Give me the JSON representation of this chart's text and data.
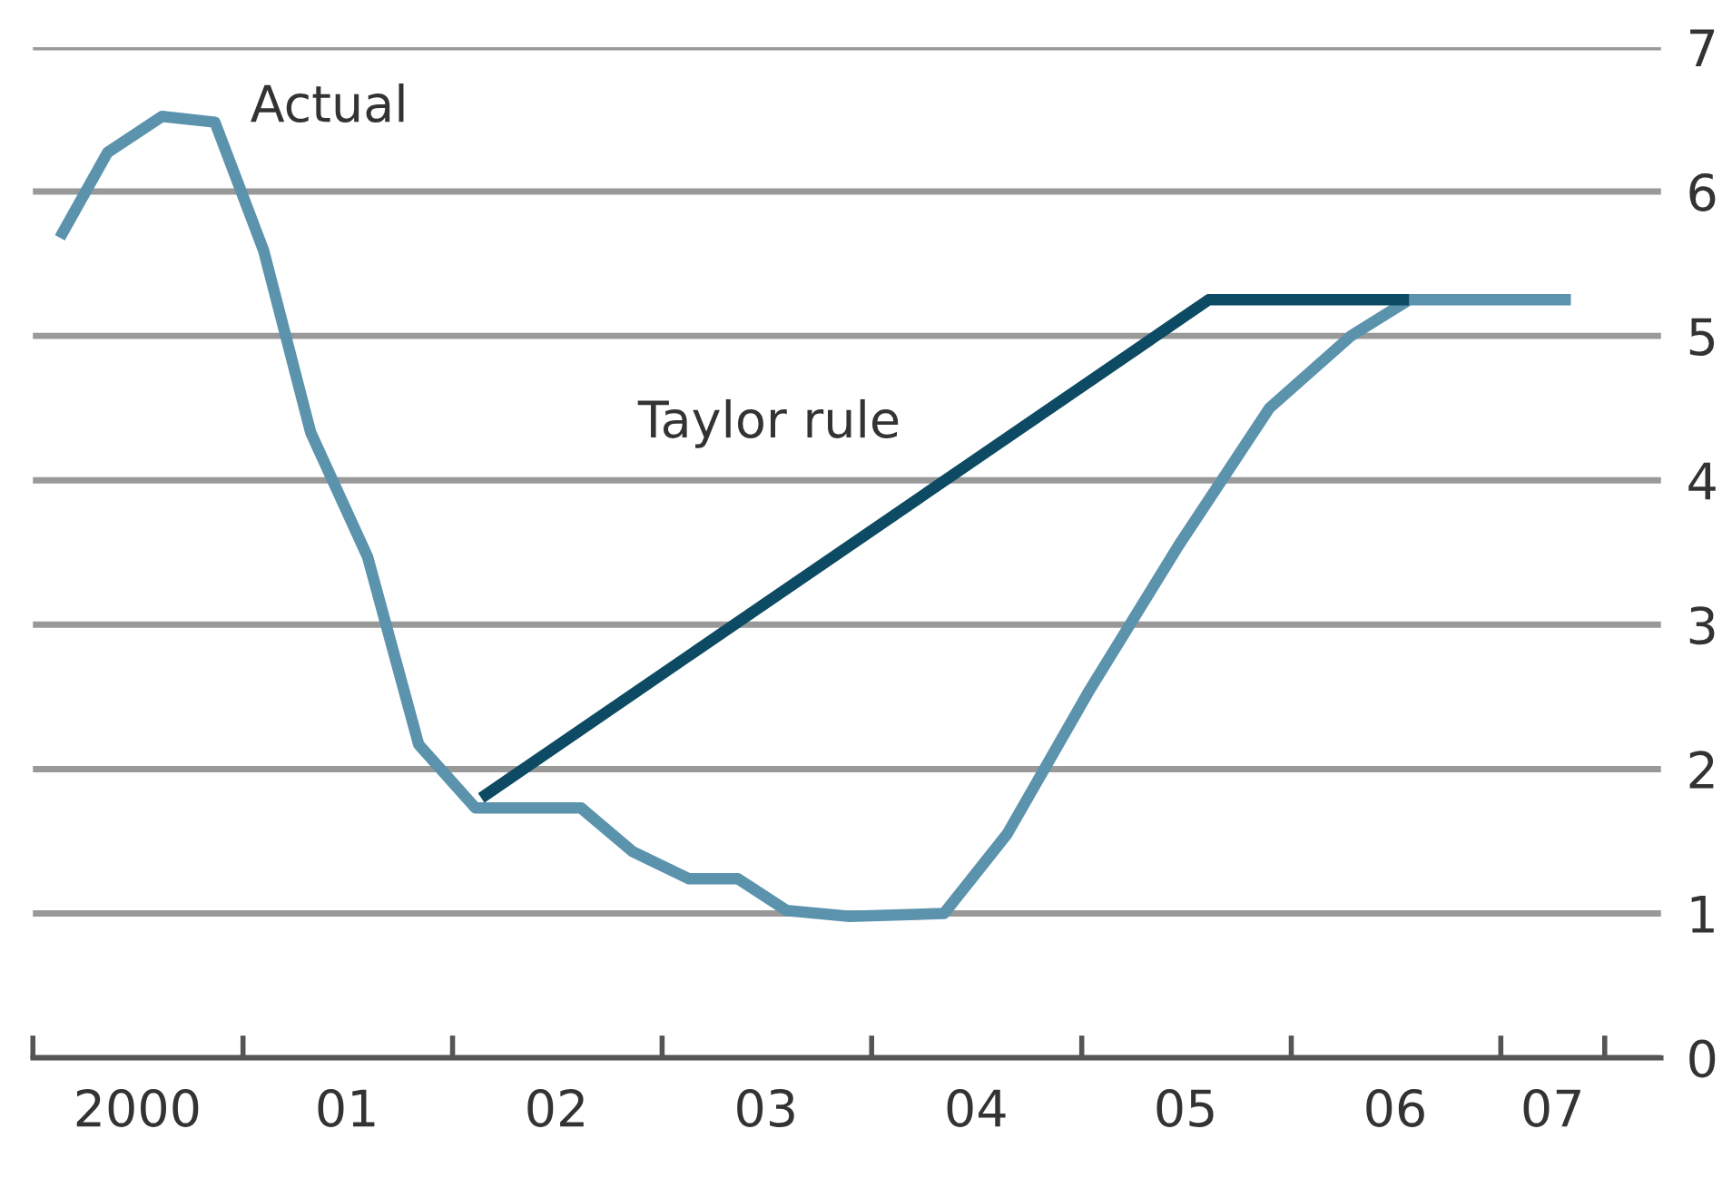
{
  "chart_data": {
    "type": "line",
    "xlim": [
      "2000-01-01",
      "2007-10-07"
    ],
    "xticks": [
      {
        "value": "2000-01-01",
        "label": null
      },
      {
        "value": "2000-07-01",
        "label": "2000"
      },
      {
        "value": "2001-01-01",
        "label": null
      },
      {
        "value": "2001-07-01",
        "label": "01"
      },
      {
        "value": "2002-01-01",
        "label": null
      },
      {
        "value": "2002-07-01",
        "label": "02"
      },
      {
        "value": "2003-01-01",
        "label": null
      },
      {
        "value": "2003-07-01",
        "label": "03"
      },
      {
        "value": "2004-01-01",
        "label": null
      },
      {
        "value": "2004-07-01",
        "label": "04"
      },
      {
        "value": "2005-01-01",
        "label": null
      },
      {
        "value": "2005-07-01",
        "label": "05"
      },
      {
        "value": "2006-01-01",
        "label": null
      },
      {
        "value": "2006-07-01",
        "label": "06"
      },
      {
        "value": "2007-01-01",
        "label": null
      },
      {
        "value": "2007-04-01",
        "label": "07"
      },
      {
        "value": "2007-07-01",
        "label": null
      }
    ],
    "ylim": [
      0,
      7
    ],
    "yticks": [
      0,
      1,
      2,
      3,
      4,
      5,
      6,
      7
    ],
    "grid": "y",
    "legend": false,
    "marker": "none",
    "line_style": "solid",
    "series": [
      {
        "name": "Actual",
        "color": "#5b93ad",
        "x": [
          "2000-02-17",
          "2000-05-10",
          "2000-08-13",
          "2000-11-13",
          "2001-02-06",
          "2001-04-29",
          "2001-08-06",
          "2001-11-03",
          "2002-02-10",
          "2002-08-13",
          "2002-11-10",
          "2003-02-17",
          "2003-05-13",
          "2003-08-06",
          "2003-11-24",
          "2004-05-06",
          "2004-08-24",
          "2005-01-15",
          "2005-06-19",
          "2005-11-24",
          "2006-04-15",
          "2006-07-25",
          "2007-05-03"
        ],
        "values": [
          5.68,
          6.27,
          6.52,
          6.48,
          5.59,
          4.33,
          3.47,
          2.17,
          1.73,
          1.73,
          1.43,
          1.24,
          1.24,
          1.02,
          0.98,
          1.0,
          1.55,
          2.55,
          3.55,
          4.5,
          5.0,
          5.25,
          5.25
        ]
      },
      {
        "name": "Taylor rule",
        "color": "#0d4a63",
        "x": [
          "2002-02-20",
          "2005-08-10",
          "2006-07-25"
        ],
        "values": [
          1.8,
          5.25,
          5.25
        ]
      }
    ]
  }
}
